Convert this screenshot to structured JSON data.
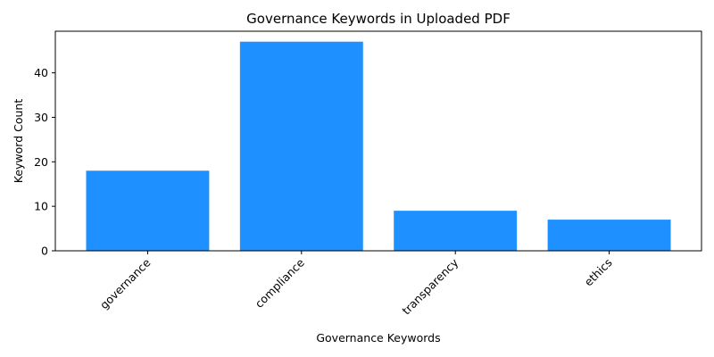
{
  "chart_data": {
    "type": "bar",
    "title": "Governance Keywords in Uploaded PDF",
    "xlabel": "Governance Keywords",
    "ylabel": "Keyword Count",
    "categories": [
      "governance",
      "compliance",
      "transparency",
      "ethics"
    ],
    "values": [
      18,
      47,
      9,
      7
    ],
    "ylim": [
      0,
      49.35
    ],
    "yticks": [
      0,
      10,
      20,
      30,
      40
    ],
    "bar_color": "#1E90FF",
    "grid": false,
    "legend": "none",
    "x_tick_rotation_deg": 45
  }
}
